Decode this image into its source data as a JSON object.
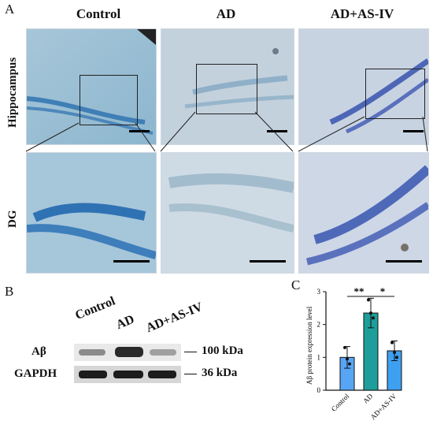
{
  "panel_letters": {
    "a": "A",
    "b": "B",
    "c": "C"
  },
  "columns": [
    "Control",
    "AD",
    "AD+AS-IV"
  ],
  "rows": {
    "top": "Hippocampus",
    "bottom": "DG"
  },
  "western": {
    "lanes": [
      "Control",
      "AD",
      "AD+AS-IV"
    ],
    "bands": [
      {
        "label": "Aβ",
        "size": "100 kDa"
      },
      {
        "label": "GAPDH",
        "size": "36 kDa"
      }
    ]
  },
  "colors": {
    "stain_light": "#8fb6cf",
    "control_bar": "#59a5f5",
    "ad_bar": "#1e9e9a",
    "asiv_bar": "#3ea0f0"
  },
  "chart_data": {
    "type": "bar",
    "categories": [
      "Control",
      "AD",
      "AD+AS-IV"
    ],
    "values": [
      1.0,
      2.35,
      1.2
    ],
    "errors": [
      0.33,
      0.45,
      0.3
    ],
    "points": [
      [
        1.3,
        0.95,
        0.8
      ],
      [
        2.75,
        2.35,
        2.2
      ],
      [
        1.45,
        1.15,
        1.0
      ]
    ],
    "ylabel": "Aβ protein expression level",
    "ylim": [
      0,
      3
    ],
    "yticks": [
      "0",
      "1",
      "2",
      "3"
    ],
    "significance": [
      "**",
      "*"
    ]
  }
}
